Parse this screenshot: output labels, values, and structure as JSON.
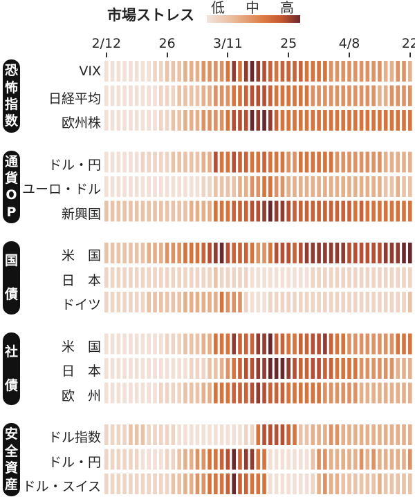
{
  "chart_data": {
    "type": "heatmap",
    "title": "市場ストレス",
    "legend": {
      "labels": [
        "低",
        "中",
        "高"
      ],
      "placement": "top"
    },
    "value_scale": [
      0,
      10
    ],
    "x_ticks": [
      {
        "index": 0,
        "label": "2/12"
      },
      {
        "index": 10,
        "label": "26"
      },
      {
        "index": 20,
        "label": "3/11"
      },
      {
        "index": 30,
        "label": "25"
      },
      {
        "index": 40,
        "label": "4/8"
      },
      {
        "index": 50,
        "label": "22"
      }
    ],
    "groups": [
      {
        "name": "恐怖指数",
        "rows": [
          {
            "label": "VIX",
            "values": [
              1,
              1,
              1,
              1,
              1,
              1,
              1,
              1,
              2,
              2,
              3,
              3,
              3,
              4,
              4,
              4,
              5,
              5,
              5,
              5,
              6,
              9,
              6,
              9,
              10,
              9,
              8,
              7,
              6,
              7,
              7,
              7,
              7,
              6,
              6,
              6,
              6,
              5,
              5,
              5,
              5,
              5,
              5,
              5,
              5,
              5,
              4,
              4,
              5,
              5,
              4
            ]
          },
          {
            "label": "日経平均",
            "values": [
              1,
              1,
              1,
              1,
              1,
              1,
              1,
              1,
              1,
              2,
              2,
              2,
              3,
              3,
              3,
              3,
              4,
              4,
              5,
              5,
              5,
              6,
              6,
              7,
              8,
              8,
              8,
              7,
              6,
              6,
              6,
              6,
              6,
              6,
              5,
              5,
              5,
              5,
              5,
              5,
              5,
              5,
              5,
              5,
              5,
              4,
              4,
              5,
              5,
              5,
              5
            ]
          },
          {
            "label": "欧州株",
            "values": [
              1,
              1,
              1,
              1,
              1,
              1,
              1,
              1,
              1,
              2,
              2,
              3,
              3,
              4,
              4,
              4,
              5,
              5,
              5,
              5,
              6,
              8,
              8,
              8,
              10,
              9,
              10,
              9,
              7,
              6,
              6,
              6,
              6,
              6,
              6,
              6,
              6,
              6,
              6,
              6,
              6,
              6,
              6,
              6,
              6,
              6,
              6,
              6,
              6,
              6,
              6
            ]
          }
        ]
      },
      {
        "name": "通貨OP",
        "rows": [
          {
            "label": "ドル・円",
            "values": [
              1,
              1,
              1,
              1,
              1,
              1,
              2,
              2,
              2,
              2,
              2,
              3,
              3,
              3,
              3,
              3,
              4,
              4,
              8,
              6,
              6,
              8,
              7,
              7,
              6,
              6,
              7,
              6,
              6,
              6,
              5,
              5,
              6,
              6,
              6,
              6,
              6,
              6,
              5,
              5,
              5,
              5,
              5,
              5,
              5,
              5,
              4,
              4,
              4,
              4,
              4
            ]
          },
          {
            "label": "ユーロ・ドル",
            "values": [
              1,
              1,
              1,
              1,
              1,
              1,
              1,
              1,
              1,
              1,
              1,
              1,
              1,
              1,
              1,
              1,
              2,
              2,
              3,
              3,
              3,
              3,
              4,
              4,
              5,
              5,
              6,
              6,
              5,
              5,
              4,
              4,
              4,
              4,
              4,
              4,
              4,
              4,
              4,
              4,
              4,
              4,
              4,
              4,
              4,
              4,
              3,
              3,
              4,
              3,
              3
            ]
          },
          {
            "label": "新興国",
            "values": [
              3,
              3,
              3,
              3,
              3,
              3,
              3,
              3,
              3,
              3,
              3,
              3,
              3,
              3,
              4,
              4,
              4,
              4,
              6,
              6,
              6,
              7,
              7,
              7,
              8,
              8,
              9,
              10,
              9,
              9,
              8,
              7,
              7,
              7,
              7,
              7,
              7,
              7,
              7,
              7,
              7,
              6,
              7,
              6,
              6,
              6,
              6,
              6,
              6,
              6,
              6
            ]
          }
        ]
      },
      {
        "name": "国債",
        "rows": [
          {
            "label": "米　国",
            "values": [
              3,
              3,
              3,
              3,
              3,
              3,
              3,
              4,
              4,
              4,
              5,
              5,
              5,
              6,
              6,
              6,
              7,
              8,
              9,
              10,
              8,
              7,
              7,
              7,
              6,
              5,
              5,
              6,
              8,
              8,
              8,
              7,
              8,
              9,
              9,
              9,
              9,
              9,
              9,
              9,
              8,
              8,
              8,
              8,
              8,
              8,
              9,
              9,
              9,
              10,
              10
            ]
          },
          {
            "label": "日　本",
            "values": [
              2,
              2,
              2,
              2,
              2,
              2,
              2,
              2,
              2,
              2,
              2,
              2,
              2,
              2,
              2,
              2,
              2,
              2,
              3,
              2,
              2,
              2,
              2,
              2,
              1,
              1,
              1,
              1,
              1,
              1,
              1,
              1,
              1,
              1,
              2,
              2,
              2,
              2,
              2,
              2,
              2,
              2,
              2,
              2,
              2,
              2,
              2,
              2,
              2,
              2,
              2
            ]
          },
          {
            "label": "ドイツ",
            "values": [
              2,
              2,
              2,
              2,
              2,
              2,
              2,
              3,
              3,
              3,
              3,
              3,
              3,
              4,
              4,
              4,
              4,
              4,
              4,
              6,
              5,
              5,
              5,
              2,
              1,
              1,
              1,
              2,
              2,
              2,
              2,
              2,
              2,
              2,
              2,
              2,
              2,
              2,
              2,
              2,
              2,
              2,
              2,
              2,
              2,
              2,
              2,
              2,
              2,
              2,
              3
            ]
          }
        ]
      },
      {
        "name": "社債",
        "rows": [
          {
            "label": "米　国",
            "values": [
              1,
              1,
              1,
              1,
              1,
              1,
              1,
              1,
              1,
              1,
              2,
              2,
              2,
              3,
              3,
              3,
              4,
              4,
              6,
              6,
              6,
              9,
              7,
              7,
              7,
              9,
              9,
              10,
              7,
              7,
              6,
              6,
              7,
              7,
              8,
              8,
              9,
              7,
              6,
              6,
              5,
              5,
              5,
              5,
              5,
              5,
              5,
              5,
              6,
              6,
              6
            ]
          },
          {
            "label": "日　本",
            "values": [
              1,
              1,
              1,
              1,
              1,
              1,
              1,
              1,
              1,
              1,
              1,
              1,
              1,
              1,
              2,
              2,
              2,
              3,
              3,
              4,
              5,
              6,
              7,
              8,
              8,
              9,
              9,
              10,
              10,
              10,
              9,
              8,
              7,
              7,
              8,
              8,
              7,
              7,
              6,
              6,
              6,
              6,
              5,
              5,
              5,
              5,
              5,
              5,
              4,
              4,
              4
            ]
          },
          {
            "label": "欧　州",
            "values": [
              1,
              1,
              1,
              1,
              1,
              1,
              1,
              1,
              1,
              2,
              2,
              2,
              2,
              3,
              3,
              3,
              4,
              4,
              6,
              6,
              6,
              7,
              7,
              7,
              8,
              9,
              8,
              7,
              7,
              7,
              6,
              6,
              6,
              6,
              6,
              6,
              5,
              5,
              5,
              5,
              5,
              5,
              4,
              4,
              4,
              4,
              4,
              4,
              4,
              4,
              4
            ]
          }
        ]
      },
      {
        "name": "安全資産",
        "rows": [
          {
            "label": "ドル指数",
            "values": [
              2,
              2,
              2,
              2,
              3,
              3,
              3,
              2,
              2,
              2,
              2,
              2,
              1,
              1,
              1,
              1,
              1,
              1,
              1,
              1,
              1,
              1,
              1,
              2,
              2,
              6,
              8,
              8,
              8,
              8,
              7,
              6,
              3,
              3,
              4,
              4,
              4,
              5,
              5,
              4,
              4,
              4,
              4,
              4,
              4,
              4,
              4,
              4,
              4,
              4,
              4
            ]
          },
          {
            "label": "ドル・円",
            "values": [
              2,
              2,
              2,
              2,
              2,
              2,
              1,
              1,
              1,
              1,
              2,
              2,
              3,
              4,
              4,
              5,
              5,
              6,
              6,
              7,
              8,
              10,
              7,
              9,
              9,
              6,
              6,
              1,
              1,
              1,
              1,
              1,
              1,
              1,
              3,
              5,
              5,
              4,
              4,
              4,
              4,
              4,
              5,
              4,
              5,
              4,
              4,
              4,
              4,
              4,
              5
            ]
          },
          {
            "label": "ドル・スイス",
            "values": [
              2,
              2,
              2,
              2,
              2,
              2,
              2,
              2,
              2,
              2,
              2,
              3,
              3,
              4,
              4,
              5,
              5,
              6,
              6,
              6,
              7,
              10,
              7,
              7,
              6,
              6,
              6,
              1,
              1,
              1,
              1,
              1,
              1,
              1,
              2,
              4,
              5,
              4,
              4,
              3,
              3,
              3,
              3,
              3,
              3,
              4,
              3,
              3,
              3,
              3,
              3
            ]
          }
        ]
      }
    ]
  }
}
